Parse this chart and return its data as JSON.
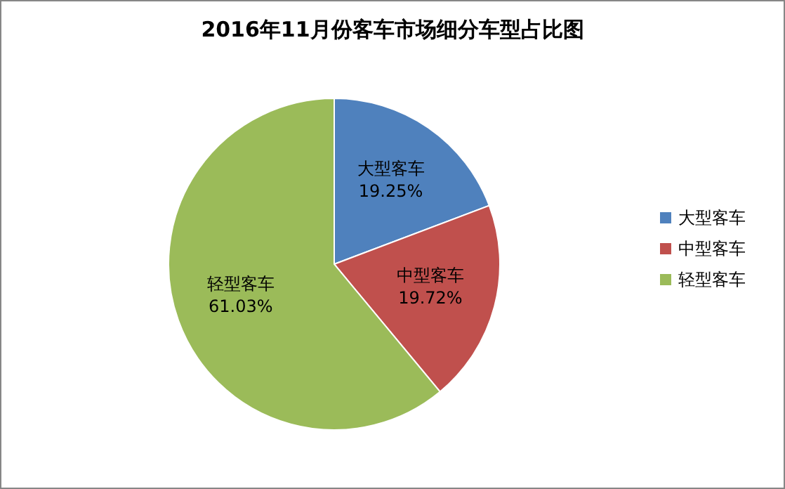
{
  "chart_data": {
    "type": "pie",
    "title": "2016年11月份客车市场细分车型占比图",
    "categories": [
      "大型客车",
      "中型客车",
      "轻型客车"
    ],
    "values": [
      19.25,
      19.72,
      61.03
    ],
    "value_labels": [
      "19.25%",
      "19.72%",
      "61.03%"
    ],
    "colors": [
      "#4f81bd",
      "#c0504d",
      "#9bbb59"
    ],
    "legend": "right"
  }
}
